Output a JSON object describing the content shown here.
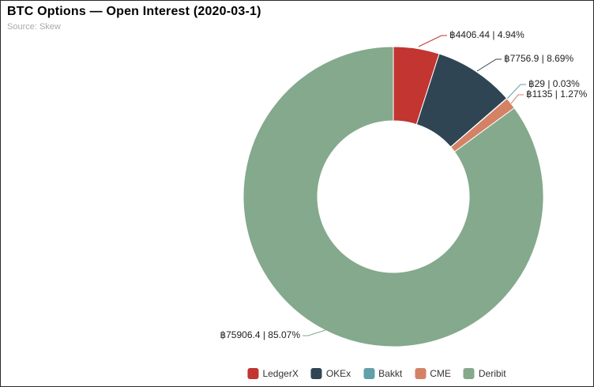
{
  "header": {
    "title": "BTC Options — Open Interest (2020-03-1)",
    "source": "Source: Skew"
  },
  "chart_data": {
    "type": "pie",
    "subtype": "donut",
    "title": "BTC Options — Open Interest (2020-03-1)",
    "source": "Source: Skew",
    "unit": "฿",
    "legend_position": "bottom",
    "series": [
      {
        "name": "LedgerX",
        "value": 4406.44,
        "percent": 4.94,
        "label": "฿4406.44 | 4.94%",
        "color": "#c23531"
      },
      {
        "name": "OKEx",
        "value": 7756.9,
        "percent": 8.69,
        "label": "฿7756.9 | 8.69%",
        "color": "#2f4554"
      },
      {
        "name": "Bakkt",
        "value": 29,
        "percent": 0.03,
        "label": "฿29 | 0.03%",
        "color": "#61a0a8"
      },
      {
        "name": "CME",
        "value": 1135,
        "percent": 1.27,
        "label": "฿1135 | 1.27%",
        "color": "#d48265"
      },
      {
        "name": "Deribit",
        "value": 75906.4,
        "percent": 85.07,
        "label": "฿75906.4 | 85.07%",
        "color": "#84a98c"
      }
    ],
    "legend": [
      "LedgerX",
      "OKEx",
      "Bakkt",
      "CME",
      "Deribit"
    ]
  }
}
